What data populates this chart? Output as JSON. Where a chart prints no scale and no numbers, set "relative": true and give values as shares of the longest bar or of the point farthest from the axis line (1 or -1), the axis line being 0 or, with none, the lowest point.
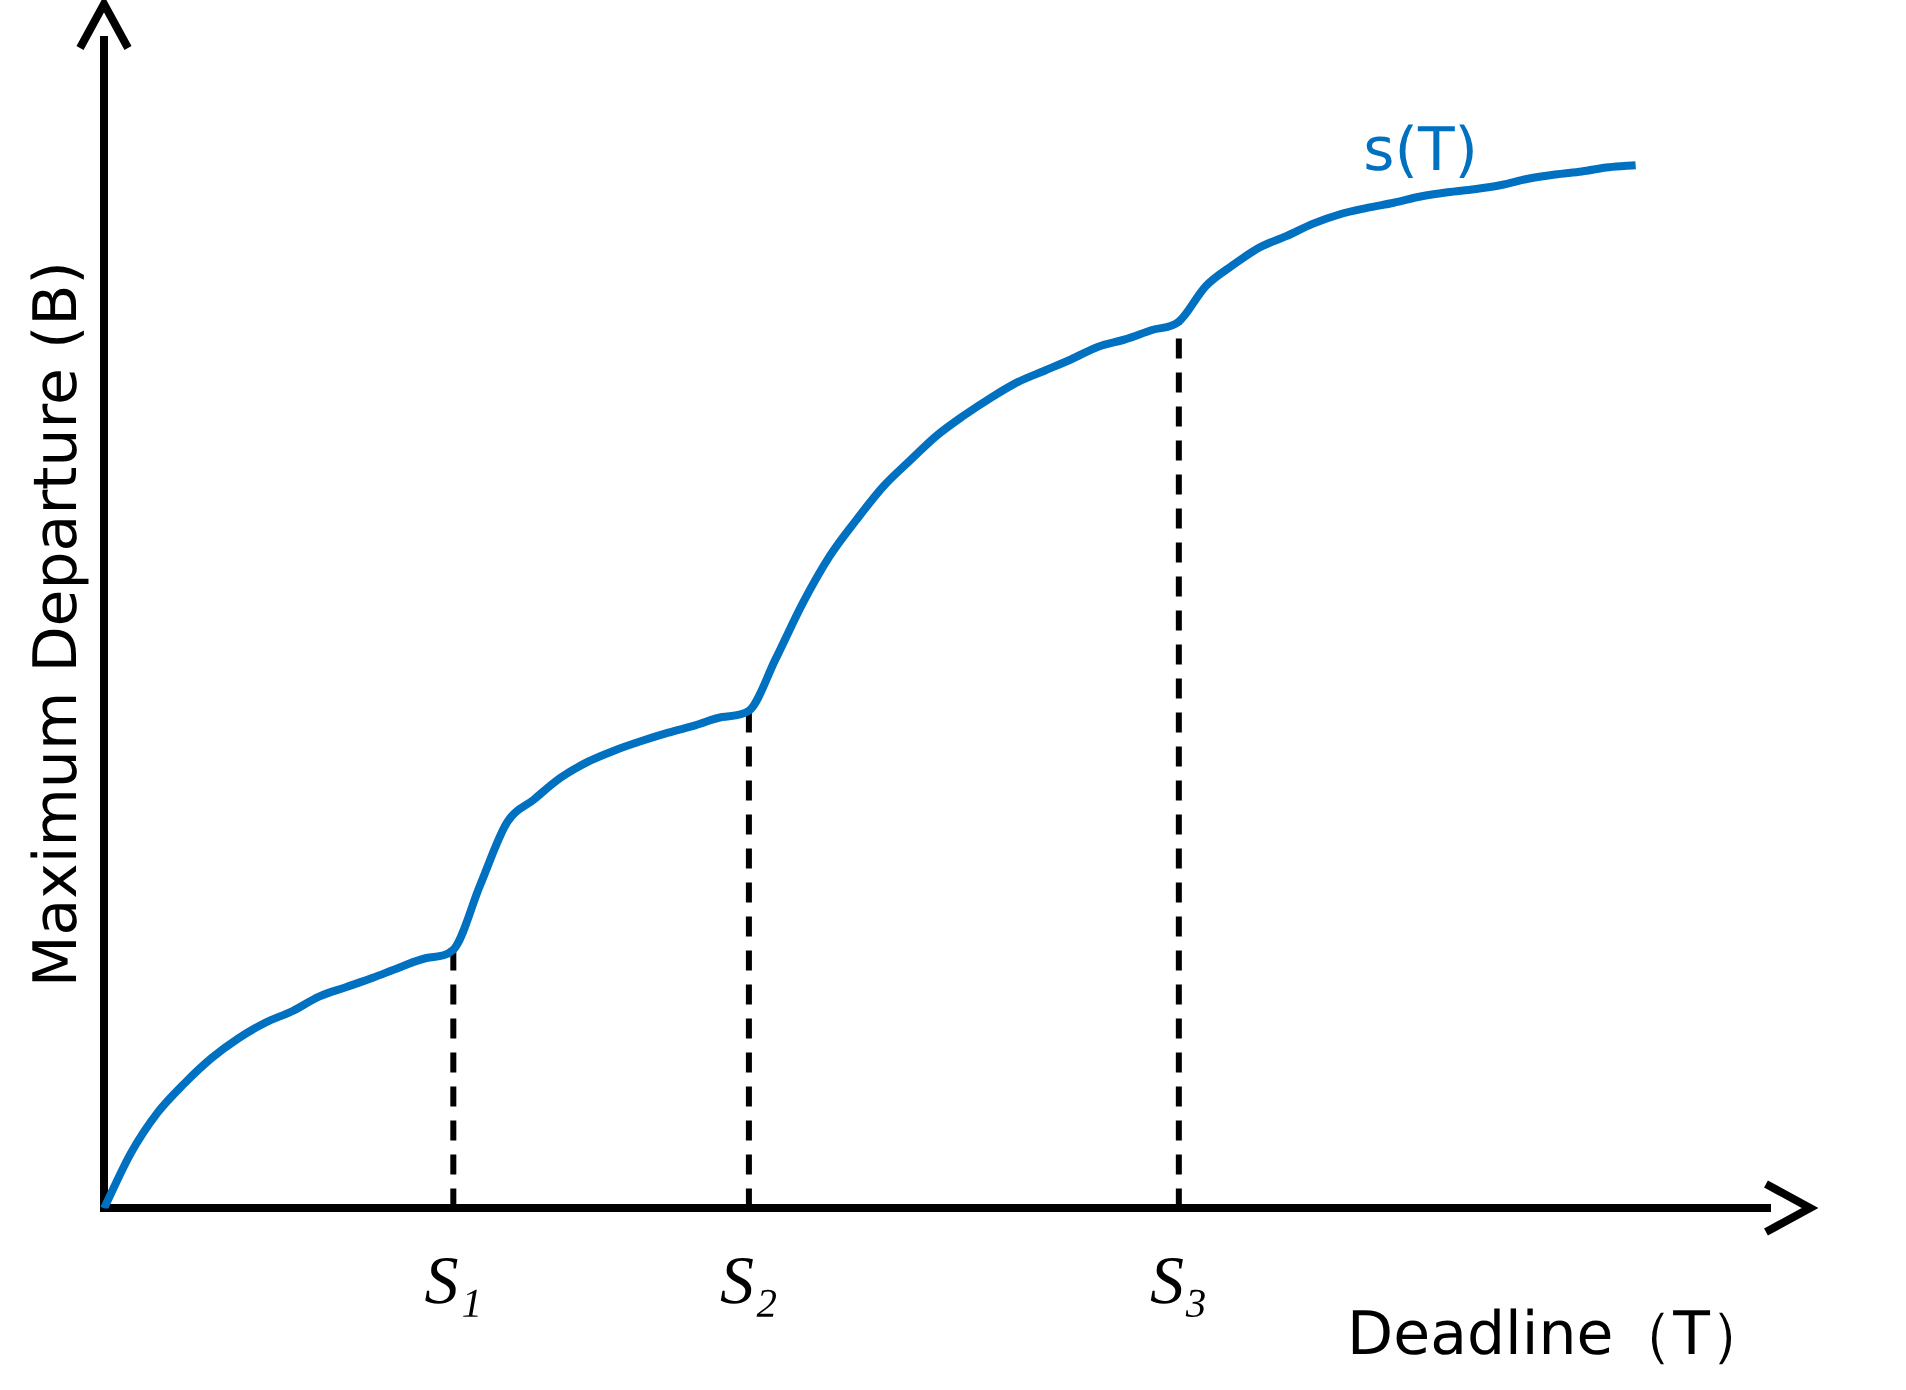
{
  "chart_data": {
    "type": "line",
    "relative": true,
    "xlabel": "Deadline（T）",
    "ylabel": "Maximum Departure (B)",
    "categories": [
      null,
      null,
      null,
      null,
      null,
      null,
      null,
      null,
      null,
      null,
      null,
      null,
      null,
      "S₁",
      null,
      null,
      null,
      null,
      null,
      null,
      null,
      null,
      null,
      null,
      "S₂",
      null,
      null,
      null,
      null,
      null,
      null,
      null,
      null,
      null,
      null,
      null,
      null,
      null,
      null,
      null,
      "S₃",
      null,
      null,
      null,
      null,
      null,
      null,
      null,
      null,
      null,
      null,
      null,
      null,
      null,
      null,
      null,
      null,
      null,
      null,
      null,
      null,
      null,
      null
    ],
    "series": [
      {
        "name": "s(T)",
        "color": "#0070c0",
        "values": [
          0,
          0.053,
          0.092,
          0.12,
          0.144,
          0.163,
          0.178,
          0.189,
          0.203,
          0.212,
          0.221,
          0.231,
          0.24,
          0.248,
          0.31,
          0.37,
          0.392,
          0.413,
          0.428,
          0.439,
          0.448,
          0.456,
          0.463,
          0.471,
          0.477,
          0.527,
          0.58,
          0.625,
          0.66,
          0.692,
          0.717,
          0.741,
          0.76,
          0.777,
          0.792,
          0.803,
          0.814,
          0.826,
          0.833,
          0.842,
          0.85,
          0.884,
          0.904,
          0.921,
          0.932,
          0.944,
          0.953,
          0.959,
          0.964,
          0.97,
          0.974,
          0.977,
          0.981,
          0.987,
          0.991,
          0.994,
          0.998,
          1,
          null,
          null,
          null,
          null,
          null
        ]
      }
    ],
    "ref_lines": [
      {
        "axis": "x",
        "value": "S₁",
        "line_style": "dashed",
        "color": "#000000"
      },
      {
        "axis": "x",
        "value": "S₂",
        "line_style": "dashed",
        "color": "#000000"
      },
      {
        "axis": "x",
        "value": "S₃",
        "line_style": "dashed",
        "color": "#000000"
      }
    ],
    "grid": false,
    "legend": false,
    "marker": "none",
    "line_style": "solid"
  }
}
